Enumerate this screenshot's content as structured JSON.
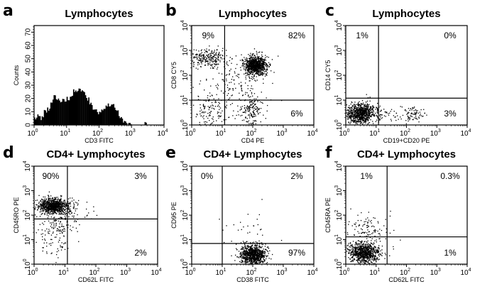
{
  "figure": {
    "panels": [
      {
        "letter": "a",
        "title": "Lymphocytes"
      },
      {
        "letter": "b",
        "title": "Lymphocytes"
      },
      {
        "letter": "c",
        "title": "Lymphocytes"
      },
      {
        "letter": "d",
        "title": "CD4+ Lymphocytes"
      },
      {
        "letter": "e",
        "title": "CD4+ Lymphocytes"
      },
      {
        "letter": "f",
        "title": "CD4+ Lymphocytes"
      }
    ]
  },
  "chart_data": [
    {
      "type": "area",
      "title": "Lymphocytes",
      "xlabel": "CD3 FITC",
      "ylabel": "Counts",
      "xscale": "log",
      "xlim": [
        1,
        10000
      ],
      "ylim": [
        0,
        75
      ],
      "xticks": [
        "10^0",
        "10^1",
        "10^2",
        "10^3",
        "10^4"
      ],
      "yticks": [
        "0",
        "10",
        "20",
        "30",
        "40",
        "50",
        "60",
        "70"
      ],
      "x": [
        1.12,
        1.41,
        1.78,
        2.24,
        2.82,
        3.55,
        4.47,
        5.62,
        7.08,
        8.91,
        11.2,
        14.1,
        17.8,
        22.4,
        28.2,
        35.5,
        44.7,
        56.2,
        70.8,
        89.1,
        112,
        141,
        178,
        224,
        282,
        355,
        447,
        562,
        708,
        891,
        1122,
        1413,
        1778,
        2239,
        2818,
        3548,
        4467,
        5623,
        7079,
        8913
      ],
      "y": [
        5,
        6,
        5,
        10,
        12,
        18,
        21,
        19,
        18,
        18,
        20,
        22,
        25,
        26,
        26,
        24,
        20,
        16,
        12,
        10,
        11,
        13,
        15,
        14,
        15,
        11,
        6,
        3,
        1,
        1,
        0,
        0,
        0,
        0,
        1,
        0,
        0,
        0,
        0,
        0
      ]
    },
    {
      "type": "scatter",
      "title": "Lymphocytes",
      "xlabel": "CD4 PE",
      "ylabel": "CD8 CY5",
      "xscale": "log",
      "yscale": "log",
      "xlim": [
        1,
        10000
      ],
      "ylim": [
        1,
        10000
      ],
      "xticks": [
        "10^0",
        "10^1",
        "10^2",
        "10^3",
        "10^4"
      ],
      "yticks": [
        "10^0",
        "10^1",
        "10^2",
        "10^3",
        "10^4"
      ],
      "gate": {
        "x": 12,
        "y": 10
      },
      "quadrant_labels": {
        "upper_left": "9%",
        "upper_right": "82%",
        "lower_right": "6%"
      },
      "populations": [
        {
          "center": [
            120,
            250
          ],
          "spread_decades": [
            0.18,
            0.18
          ],
          "n": 900
        },
        {
          "center": [
            3,
            500
          ],
          "spread_decades": [
            0.35,
            0.2
          ],
          "n": 260
        },
        {
          "center": [
            90,
            4
          ],
          "spread_decades": [
            0.15,
            0.35
          ],
          "n": 170
        },
        {
          "center": [
            4,
            3
          ],
          "spread_decades": [
            0.3,
            0.35
          ],
          "n": 110
        },
        {
          "center": [
            20,
            40
          ],
          "spread_decades": [
            0.6,
            0.6
          ],
          "n": 160
        }
      ]
    },
    {
      "type": "scatter",
      "title": "Lymphocytes",
      "xlabel": "CD19+CD20 PE",
      "ylabel": "CD14 CY5",
      "xscale": "log",
      "yscale": "log",
      "xlim": [
        1,
        10000
      ],
      "ylim": [
        1,
        10000
      ],
      "xticks": [
        "10^0",
        "10^1",
        "10^2",
        "10^3",
        "10^4"
      ],
      "yticks": [
        "10^0",
        "10^1",
        "10^2",
        "10^3",
        "10^4"
      ],
      "gate": {
        "x": 12,
        "y": 12
      },
      "quadrant_labels": {
        "upper_left": "1%",
        "upper_right": "0%",
        "lower_right": "3%"
      },
      "populations": [
        {
          "center": [
            3,
            3
          ],
          "spread_decades": [
            0.22,
            0.2
          ],
          "n": 800
        },
        {
          "center": [
            150,
            3
          ],
          "spread_decades": [
            0.2,
            0.15
          ],
          "n": 70
        },
        {
          "center": [
            15,
            3
          ],
          "spread_decades": [
            0.45,
            0.2
          ],
          "n": 80
        }
      ]
    },
    {
      "type": "scatter",
      "title": "CD4+ Lymphocytes",
      "xlabel": "CD62L FITC",
      "ylabel": "CD45RO PE",
      "xscale": "log",
      "yscale": "log",
      "xlim": [
        1,
        10000
      ],
      "ylim": [
        1,
        10000
      ],
      "xticks": [
        "10^0",
        "10^1",
        "10^2",
        "10^3",
        "10^4"
      ],
      "yticks": [
        "10^0",
        "10^1",
        "10^2",
        "10^3",
        "10^4"
      ],
      "gate": {
        "x": 12,
        "y": 70
      },
      "quadrant_labels": {
        "upper_left": "90%",
        "upper_right": "3%",
        "lower_right": "2%"
      },
      "populations": [
        {
          "center": [
            4,
            250
          ],
          "spread_decades": [
            0.22,
            0.15
          ],
          "n": 850
        },
        {
          "center": [
            5,
            20
          ],
          "spread_decades": [
            0.3,
            0.5
          ],
          "n": 160
        },
        {
          "center": [
            15,
            150
          ],
          "spread_decades": [
            0.3,
            0.3
          ],
          "n": 90
        }
      ]
    },
    {
      "type": "scatter",
      "title": "CD4+ Lymphocytes",
      "xlabel": "CD38 FITC",
      "ylabel": "CD95 PE",
      "xscale": "log",
      "yscale": "log",
      "xlim": [
        1,
        10000
      ],
      "ylim": [
        1,
        10000
      ],
      "xticks": [
        "10^0",
        "10^1",
        "10^2",
        "10^3",
        "10^4"
      ],
      "yticks": [
        "10^0",
        "10^1",
        "10^2",
        "10^3",
        "10^4"
      ],
      "gate": {
        "x": 10,
        "y": 7
      },
      "quadrant_labels": {
        "upper_left": "0%",
        "upper_right": "2%",
        "lower_right": "97%"
      },
      "populations": [
        {
          "center": [
            100,
            2.5
          ],
          "spread_decades": [
            0.2,
            0.2
          ],
          "n": 900
        },
        {
          "center": [
            60,
            15
          ],
          "spread_decades": [
            0.5,
            0.5
          ],
          "n": 40
        }
      ]
    },
    {
      "type": "scatter",
      "title": "CD4+ Lymphocytes",
      "xlabel": "CD62L FITC",
      "ylabel": "CD45RA PE",
      "xscale": "log",
      "yscale": "log",
      "xlim": [
        1,
        10000
      ],
      "ylim": [
        1,
        10000
      ],
      "xticks": [
        "10^0",
        "10^1",
        "10^2",
        "10^3",
        "10^4"
      ],
      "yticks": [
        "10^0",
        "10^1",
        "10^2",
        "10^3",
        "10^4"
      ],
      "gate": {
        "x": 23,
        "y": 13
      },
      "quadrant_labels": {
        "upper_left": "1%",
        "upper_right": "0.3%",
        "lower_right": "1%"
      },
      "populations": [
        {
          "center": [
            4,
            3
          ],
          "spread_decades": [
            0.25,
            0.2
          ],
          "n": 850
        },
        {
          "center": [
            6,
            30
          ],
          "spread_decades": [
            0.35,
            0.35
          ],
          "n": 110
        }
      ]
    }
  ]
}
